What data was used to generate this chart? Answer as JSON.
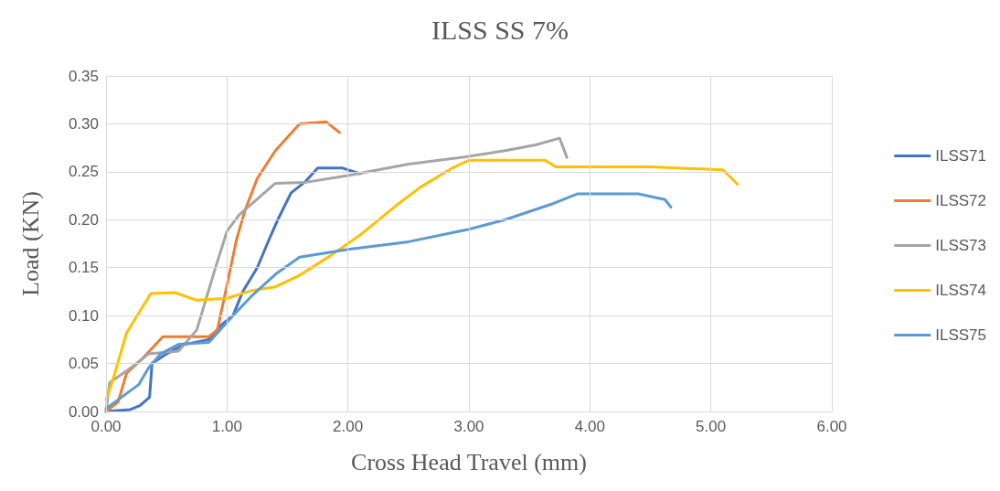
{
  "chart_data": {
    "type": "line",
    "title": "ILSS SS 7%",
    "xlabel": "Cross Head Travel (mm)",
    "ylabel": "Load (KN)",
    "xlim": [
      0,
      6
    ],
    "xticks": [
      {
        "value": 0,
        "label": "0.00"
      },
      {
        "value": 1,
        "label": "1.00"
      },
      {
        "value": 2,
        "label": "2.00"
      },
      {
        "value": 3,
        "label": "3.00"
      },
      {
        "value": 4,
        "label": "4.00"
      },
      {
        "value": 5,
        "label": "5.00"
      },
      {
        "value": 6,
        "label": "6.00"
      }
    ],
    "ylim": [
      0,
      0.35
    ],
    "yticks": [
      {
        "value": 0,
        "label": "0.00"
      },
      {
        "value": 0.05,
        "label": "0.05"
      },
      {
        "value": 0.1,
        "label": "0.10"
      },
      {
        "value": 0.15,
        "label": "0.15"
      },
      {
        "value": 0.2,
        "label": "0.20"
      },
      {
        "value": 0.25,
        "label": "0.25"
      },
      {
        "value": 0.3,
        "label": "0.30"
      },
      {
        "value": 0.35,
        "label": "0.35"
      }
    ],
    "grid": true,
    "legend": "right",
    "marker": "none",
    "line_style": "solid",
    "series": [
      {
        "name": "ILSS71",
        "color": "#4472c4",
        "x": [
          0,
          0.2,
          0.28,
          0.36,
          0.38,
          0.5,
          0.65,
          0.85,
          0.95,
          1.05,
          1.13,
          1.25,
          1.35,
          1.42,
          1.53,
          1.65,
          1.75,
          1.95,
          2.1
        ],
        "values": [
          0,
          0.002,
          0.006,
          0.015,
          0.05,
          0.06,
          0.07,
          0.075,
          0.09,
          0.1,
          0.125,
          0.15,
          0.18,
          0.2,
          0.228,
          0.24,
          0.254,
          0.254,
          0.248
        ]
      },
      {
        "name": "ILSS72",
        "color": "#ed7d31",
        "x": [
          0,
          0.1,
          0.17,
          0.3,
          0.47,
          0.85,
          0.92,
          0.98,
          1.03,
          1.08,
          1.15,
          1.25,
          1.4,
          1.6,
          1.82,
          1.93
        ],
        "values": [
          0,
          0.01,
          0.04,
          0.055,
          0.078,
          0.078,
          0.085,
          0.12,
          0.15,
          0.18,
          0.21,
          0.243,
          0.272,
          0.3,
          0.302,
          0.291
        ]
      },
      {
        "name": "ILSS73",
        "color": "#a5a5a5",
        "x": [
          0,
          0.03,
          0.2,
          0.35,
          0.6,
          0.75,
          0.9,
          1.0,
          1.1,
          1.4,
          1.65,
          2.0,
          2.5,
          3.0,
          3.3,
          3.55,
          3.75,
          3.81
        ],
        "values": [
          0,
          0.03,
          0.045,
          0.06,
          0.063,
          0.085,
          0.148,
          0.188,
          0.205,
          0.238,
          0.239,
          0.246,
          0.258,
          0.266,
          0.272,
          0.278,
          0.285,
          0.265
        ]
      },
      {
        "name": "ILSS74",
        "color": "#ffc000",
        "x": [
          0,
          0.05,
          0.17,
          0.37,
          0.57,
          0.75,
          1.0,
          1.2,
          1.4,
          1.6,
          1.85,
          2.1,
          2.4,
          2.6,
          2.85,
          3.0,
          3.63,
          3.72,
          4.5,
          5.1,
          5.22
        ],
        "values": [
          0.012,
          0.03,
          0.082,
          0.123,
          0.124,
          0.116,
          0.118,
          0.126,
          0.13,
          0.142,
          0.162,
          0.184,
          0.215,
          0.234,
          0.253,
          0.262,
          0.262,
          0.255,
          0.255,
          0.252,
          0.237
        ]
      },
      {
        "name": "ILSS75",
        "color": "#5b9bd5",
        "x": [
          0,
          0.27,
          0.35,
          0.45,
          0.6,
          0.85,
          1.05,
          1.2,
          1.4,
          1.6,
          2.0,
          2.5,
          3.0,
          3.3,
          3.7,
          3.9,
          4.4,
          4.62,
          4.67
        ],
        "values": [
          0.003,
          0.028,
          0.045,
          0.06,
          0.07,
          0.072,
          0.1,
          0.12,
          0.143,
          0.161,
          0.169,
          0.177,
          0.19,
          0.2,
          0.217,
          0.227,
          0.227,
          0.221,
          0.213
        ]
      }
    ]
  }
}
